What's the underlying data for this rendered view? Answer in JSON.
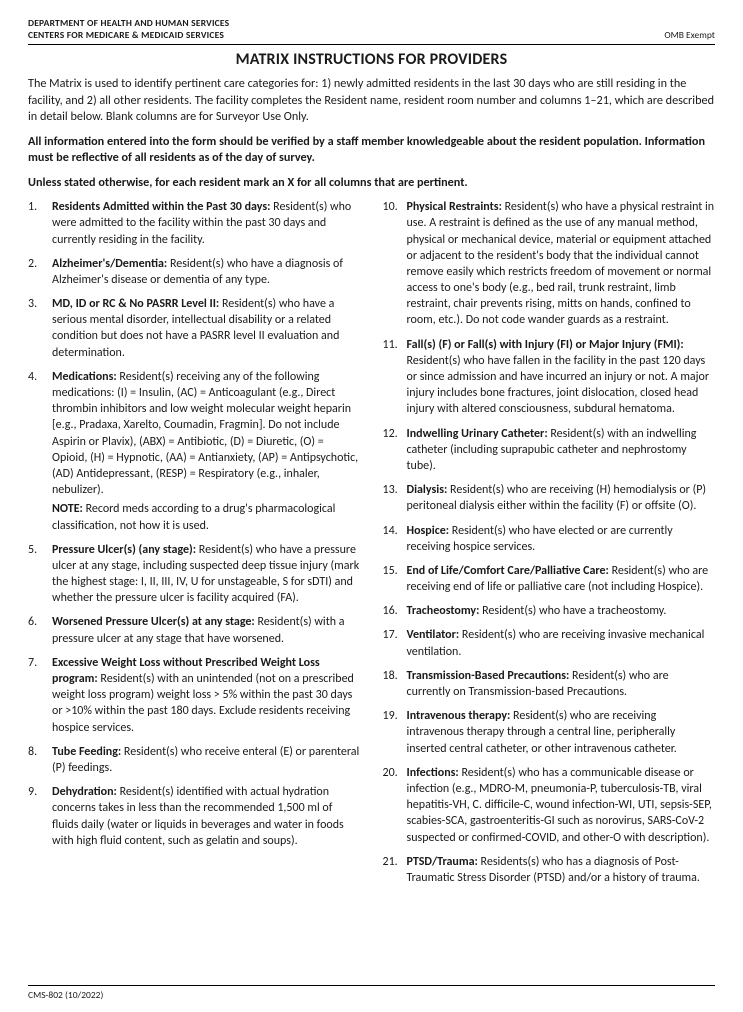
{
  "header": {
    "dept1": "DEPARTMENT OF HEALTH AND HUMAN SERVICES",
    "dept2": "CENTERS FOR MEDICARE & MEDICAID SERVICES",
    "omb": "OMB Exempt"
  },
  "title": "MATRIX INSTRUCTIONS FOR PROVIDERS",
  "intro": "The Matrix is used to identify pertinent care categories for: 1) newly admitted residents in the last 30 days who are still residing in the facility, and 2) all other residents. The facility completes the Resident name, resident room number and columns 1–21, which are described in detail below. Blank columns are for Surveyor Use Only.",
  "bold1": "All information entered into the form should be verified by a staff member knowledgeable about the resident population. Information must be reflective of all residents as of the day of survey.",
  "bold2": "Unless stated otherwise, for each resident mark an X for all columns that are pertinent.",
  "items": [
    {
      "title": "Residents Admitted within the Past 30 days:",
      "body": " Resident(s) who were admitted to the facility within the past 30 days and currently residing in the facility."
    },
    {
      "title": "Alzheimer's/Dementia:",
      "body": " Resident(s) who have a diagnosis of Alzheimer's disease or dementia of any type."
    },
    {
      "title": "MD, ID or RC & No PASRR Level II:",
      "body": " Resident(s) who have a serious mental disorder, intellectual disability or a related condition but does not have a PASRR level II evaluation and determination."
    },
    {
      "title": "Medications:",
      "body": " Resident(s) receiving any of the following medications: (I) = Insulin, (AC) = Anticoagulant (e.g., Direct thrombin inhibitors and low weight molecular weight heparin [e.g., Pradaxa, Xarelto, Coumadin, Fragmin]. Do not include Aspirin or Plavix), (ABX) = Antibiotic, (D) =  Diuretic, (O) = Opioid, (H) = Hypnotic, (AA) = Antianxiety, (AP) = Antipsychotic, (AD) Antidepressant, (RESP) = Respiratory (e.g., inhaler, nebulizer).",
      "noteLabel": "NOTE:",
      "note": " Record meds according to a drug's pharmacological classification, not how it is used."
    },
    {
      "title": "Pressure Ulcer(s) (any stage):",
      "body": " Resident(s) who have a pressure ulcer at any stage, including suspected deep tissue injury (mark the highest stage: I, II, III, IV, U for unstageable, S for sDTI) and whether the pressure ulcer is facility acquired (FA)."
    },
    {
      "title": "Worsened Pressure Ulcer(s) at any stage:",
      "body": " Resident(s) with a pressure ulcer at any stage that have worsened."
    },
    {
      "title": "Excessive Weight Loss without Prescribed Weight Loss program:",
      "body": " Resident(s) with an unintended (not on a prescribed weight loss program) weight loss > 5% within the past 30 days or >10% within the past 180 days. Exclude residents receiving hospice services."
    },
    {
      "title": "Tube Feeding:",
      "body": " Resident(s) who receive enteral (E) or parenteral (P) feedings."
    },
    {
      "title": "Dehydration:",
      "body": " Resident(s) identified with actual hydration concerns takes in less than the recommended 1,500 ml of fluids daily (water or liquids in beverages and water in foods with high fluid content, such as gelatin and  soups)."
    },
    {
      "title": "Physical Restraints:",
      "body": " Resident(s) who have a physical restraint in use. A restraint is defined as the use of any manual method, physical or mechanical device, material or equipment attached or adjacent to the resident's body that the individual cannot remove easily which restricts freedom of movement or normal access to one's body (e.g., bed rail, trunk restraint, limb restraint, chair prevents rising, mitts on hands, confined to room, etc.). Do not code wander guards as a restraint."
    },
    {
      "title": "Fall(s) (F) or Fall(s) with Injury (FI) or Major Injury (FMI):",
      "body": " Resident(s) who have fallen in the facility in the past 120 days or since admission and have incurred an injury or not. A major injury includes bone fractures, joint dislocation, closed head injury with altered consciousness, subdural hematoma."
    },
    {
      "title": "Indwelling Urinary Catheter:",
      "body": " Resident(s) with an indwelling catheter (including suprapubic catheter and nephrostomy tube)."
    },
    {
      "title": "Dialysis:",
      "body": " Resident(s) who are receiving (H) hemodialysis or (P) peritoneal dialysis either within the facility (F) or offsite (O)."
    },
    {
      "title": "Hospice:",
      "body": " Resident(s) who have elected or are currently receiving hospice services."
    },
    {
      "title": "End of Life/Comfort Care/Palliative Care:",
      "body": " Resident(s) who are receiving end of life or palliative care (not including Hospice)."
    },
    {
      "title": "Tracheostomy:",
      "body": " Resident(s) who have a tracheostomy."
    },
    {
      "title": "Ventilator:",
      "body": " Resident(s) who are receiving invasive mechanical ventilation."
    },
    {
      "title": "Transmission-Based Precautions:",
      "body": " Resident(s) who are currently on Transmission-based Precautions."
    },
    {
      "title": "Intravenous therapy:",
      "body": " Resident(s) who are receiving intravenous therapy through a central line, peripherally inserted central catheter, or other intravenous catheter."
    },
    {
      "title": "Infections:",
      "body": " Resident(s) who has a communicable disease or infection (e.g., MDRO-M, pneumonia-P, tuberculosis-TB, viral hepatitis-VH, C. difficile-C, wound infection-WI, UTI, sepsis-SEP, scabies-SCA, gastroenteritis-GI such as norovirus, SARS-CoV-2 suspected or confirmed-COVID, and other-O with description)."
    },
    {
      "title": "PTSD/Trauma:",
      "body": " Residents(s) who has a diagnosis of Post-Traumatic Stress Disorder (PTSD) and/or a history of trauma."
    }
  ],
  "footer": "CMS-802 (10/2022)"
}
